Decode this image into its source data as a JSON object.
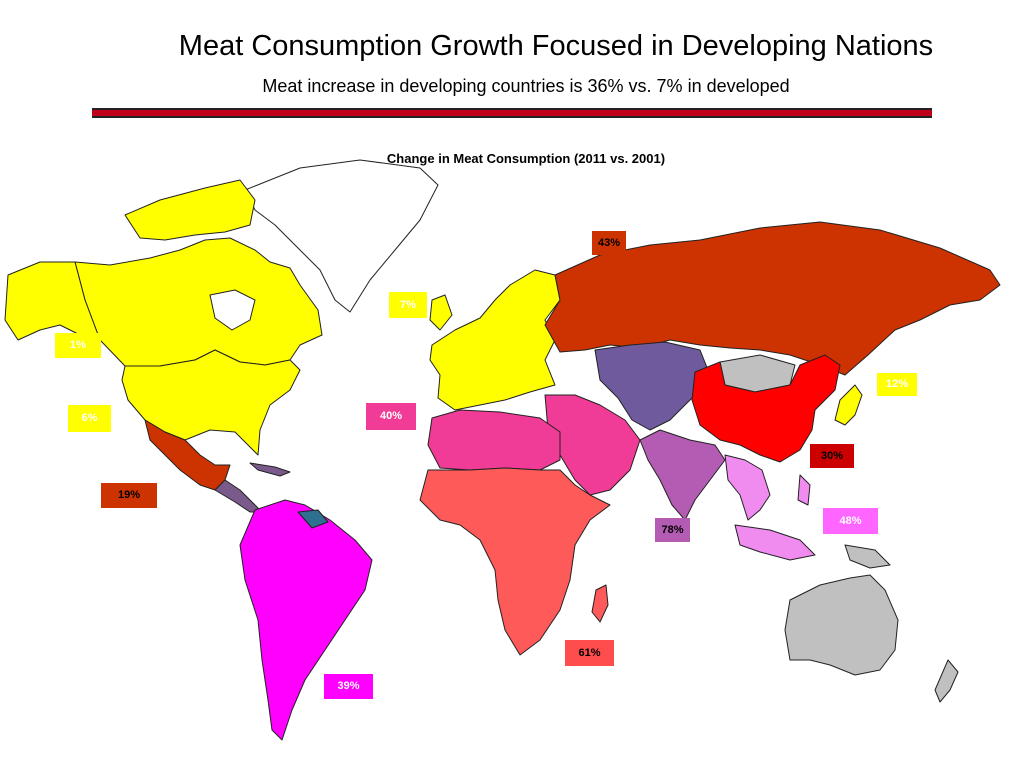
{
  "title": "Meat Consumption Growth Focused in Developing Nations",
  "subtitle": "Meat increase in developing countries is 36% vs. 7% in developed",
  "map_title": "Change in Meat Consumption (2011 vs. 2001)",
  "colors": {
    "developed_yellow": "#ffff00",
    "russia_fsu": "#cc3300",
    "china": "#ff0000",
    "east_asia_label": "#cc0000",
    "central_asia": "#6f5a9e",
    "south_asia": "#b45cb4",
    "southeast_asia": "#f08cf0",
    "north_africa_middle_east": "#f03c96",
    "sub_saharan_africa": "#ff5a5a",
    "south_america": "#ff00ff",
    "mexico": "#cc3300",
    "central_america": "#7a5a8a",
    "no_data_gray": "#c0c0c0",
    "greenland_white": "#ffffff",
    "title_rule": "#c0001a"
  },
  "regions": [
    {
      "id": "russia",
      "value": "43%",
      "color": "#cc3300",
      "text_color": "#000000"
    },
    {
      "id": "western-europe",
      "value": "7%",
      "color": "#ffff00",
      "text_color": "#ffffff"
    },
    {
      "id": "canada",
      "value": "1%",
      "color": "#ffff00",
      "text_color": "#ffffff"
    },
    {
      "id": "usa",
      "value": "6%",
      "color": "#ffff00",
      "text_color": "#ffffff"
    },
    {
      "id": "north-africa-middle-east",
      "value": "40%",
      "color": "#f03c96",
      "text_color": "#ffffff"
    },
    {
      "id": "japan",
      "value": "12%",
      "color": "#ffff00",
      "text_color": "#ffffff"
    },
    {
      "id": "china",
      "value": "30%",
      "color": "#cc0000",
      "text_color": "#000000"
    },
    {
      "id": "mexico",
      "value": "19%",
      "color": "#cc3300",
      "text_color": "#000000"
    },
    {
      "id": "southeast-asia",
      "value": "48%",
      "color": "#ff66ff",
      "text_color": "#ffffff"
    },
    {
      "id": "south-asia",
      "value": "78%",
      "color": "#b45cb4",
      "text_color": "#000000"
    },
    {
      "id": "sub-saharan-africa",
      "value": "61%",
      "color": "#ff4d4d",
      "text_color": "#000000"
    },
    {
      "id": "south-america",
      "value": "39%",
      "color": "#ff00ff",
      "text_color": "#ffffff"
    }
  ]
}
